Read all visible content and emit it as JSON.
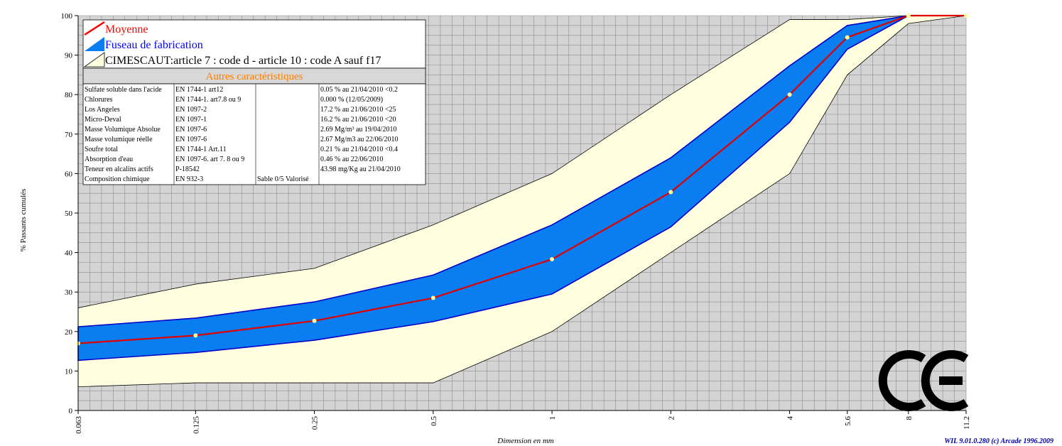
{
  "chart_data": {
    "type": "line",
    "ylabel": "% Passants cumulés",
    "xlabel": "Dimension en mm",
    "ylim": [
      0,
      100
    ],
    "y_ticks": [
      "0",
      "10",
      "20",
      "30",
      "40",
      "50",
      "60",
      "70",
      "80",
      "90",
      "100"
    ],
    "x_scale": "log",
    "x": [
      0.063,
      0.125,
      0.25,
      0.5,
      1,
      2,
      4,
      5.6,
      8,
      11.2
    ],
    "x_tick_labels": [
      "0.063",
      "0.125",
      "0.25",
      "0.5",
      "1",
      "2",
      "4",
      "5.6",
      "8",
      "11.2"
    ],
    "grid": true,
    "legend_position": "top-left",
    "series": [
      {
        "name": "Moyenne",
        "values": [
          17,
          19,
          22.7,
          28.5,
          38.3,
          55.3,
          80,
          94.5,
          100,
          100
        ]
      },
      {
        "name": "Fuseau de fabrication",
        "lower": [
          12.7,
          14.7,
          17.8,
          22.5,
          29.5,
          46.5,
          73,
          91.5,
          100,
          100
        ],
        "upper": [
          21.2,
          23.4,
          27.5,
          34.3,
          47,
          64,
          87.3,
          97.5,
          100,
          100
        ]
      },
      {
        "name": "CIMESCAUT:article 7 : code d - article 10 : code A sauf f17",
        "lower": [
          6,
          7,
          7,
          7,
          20,
          40,
          60,
          85,
          98,
          100
        ],
        "upper": [
          26,
          32,
          36,
          47,
          60,
          80,
          99,
          99,
          100,
          100
        ]
      }
    ]
  },
  "table": {
    "title": "Autres caractéristiques",
    "rows": [
      [
        "Sulfate soluble dans l'acide",
        "EN 1744-1 art12",
        "",
        "0.05 %  au 21/04/2010 <0.2"
      ],
      [
        "Chlorures",
        "EN 1744-1. art7.8 ou 9",
        "",
        "0.000 %  (12/05/2009)"
      ],
      [
        "Los Angeles",
        "EN 1097-2",
        "",
        "17.2 %  au 21/06/2010 <25"
      ],
      [
        "Micro-Deval",
        "EN 1097-1",
        "",
        "16.2 %  au 21/06/2010 <20"
      ],
      [
        "Masse Volumique Absolue",
        "EN 1097-6",
        "",
        "2.69 Mg/m³  au 19/04/2010"
      ],
      [
        "Masse volumique réelle",
        "EN 1097-6",
        "",
        "2.67 Mg/m3  au 22/06/2010"
      ],
      [
        "Soufre total",
        "EN 1744-1 Art.11",
        "",
        "0.21 %  au 21/04/2010 <0.4"
      ],
      [
        "Absorption d'eau",
        "EN 1097-6. art 7. 8 ou 9",
        "",
        "0.46 %  au 22/06/2010"
      ],
      [
        "Teneur en alcalins actifs",
        "P-18542",
        "",
        "43.98 mg/Kg  au 21/04/2010"
      ],
      [
        "Composition chimique",
        "EN 932-3",
        "Sable 0/5 Valorisé",
        ""
      ]
    ]
  },
  "mark": {
    "label": "CE"
  },
  "credit": "WIL 9.01.0.280 (c) Arcade 1996.2009",
  "colors": {
    "plot_bg": "#d4d4d4",
    "grid": "#8c8c8c",
    "outer_band": "#ffffe0",
    "inner_band": "#0a7ef0",
    "inner_band_edge": "#0000c8",
    "mean_line": "#e00000",
    "mean_point": "#ffffa0",
    "legend_mean": "#ff0000",
    "legend_fuseau": "#0000ff",
    "table_title": "#ff8000",
    "credit": "#0000a0"
  }
}
